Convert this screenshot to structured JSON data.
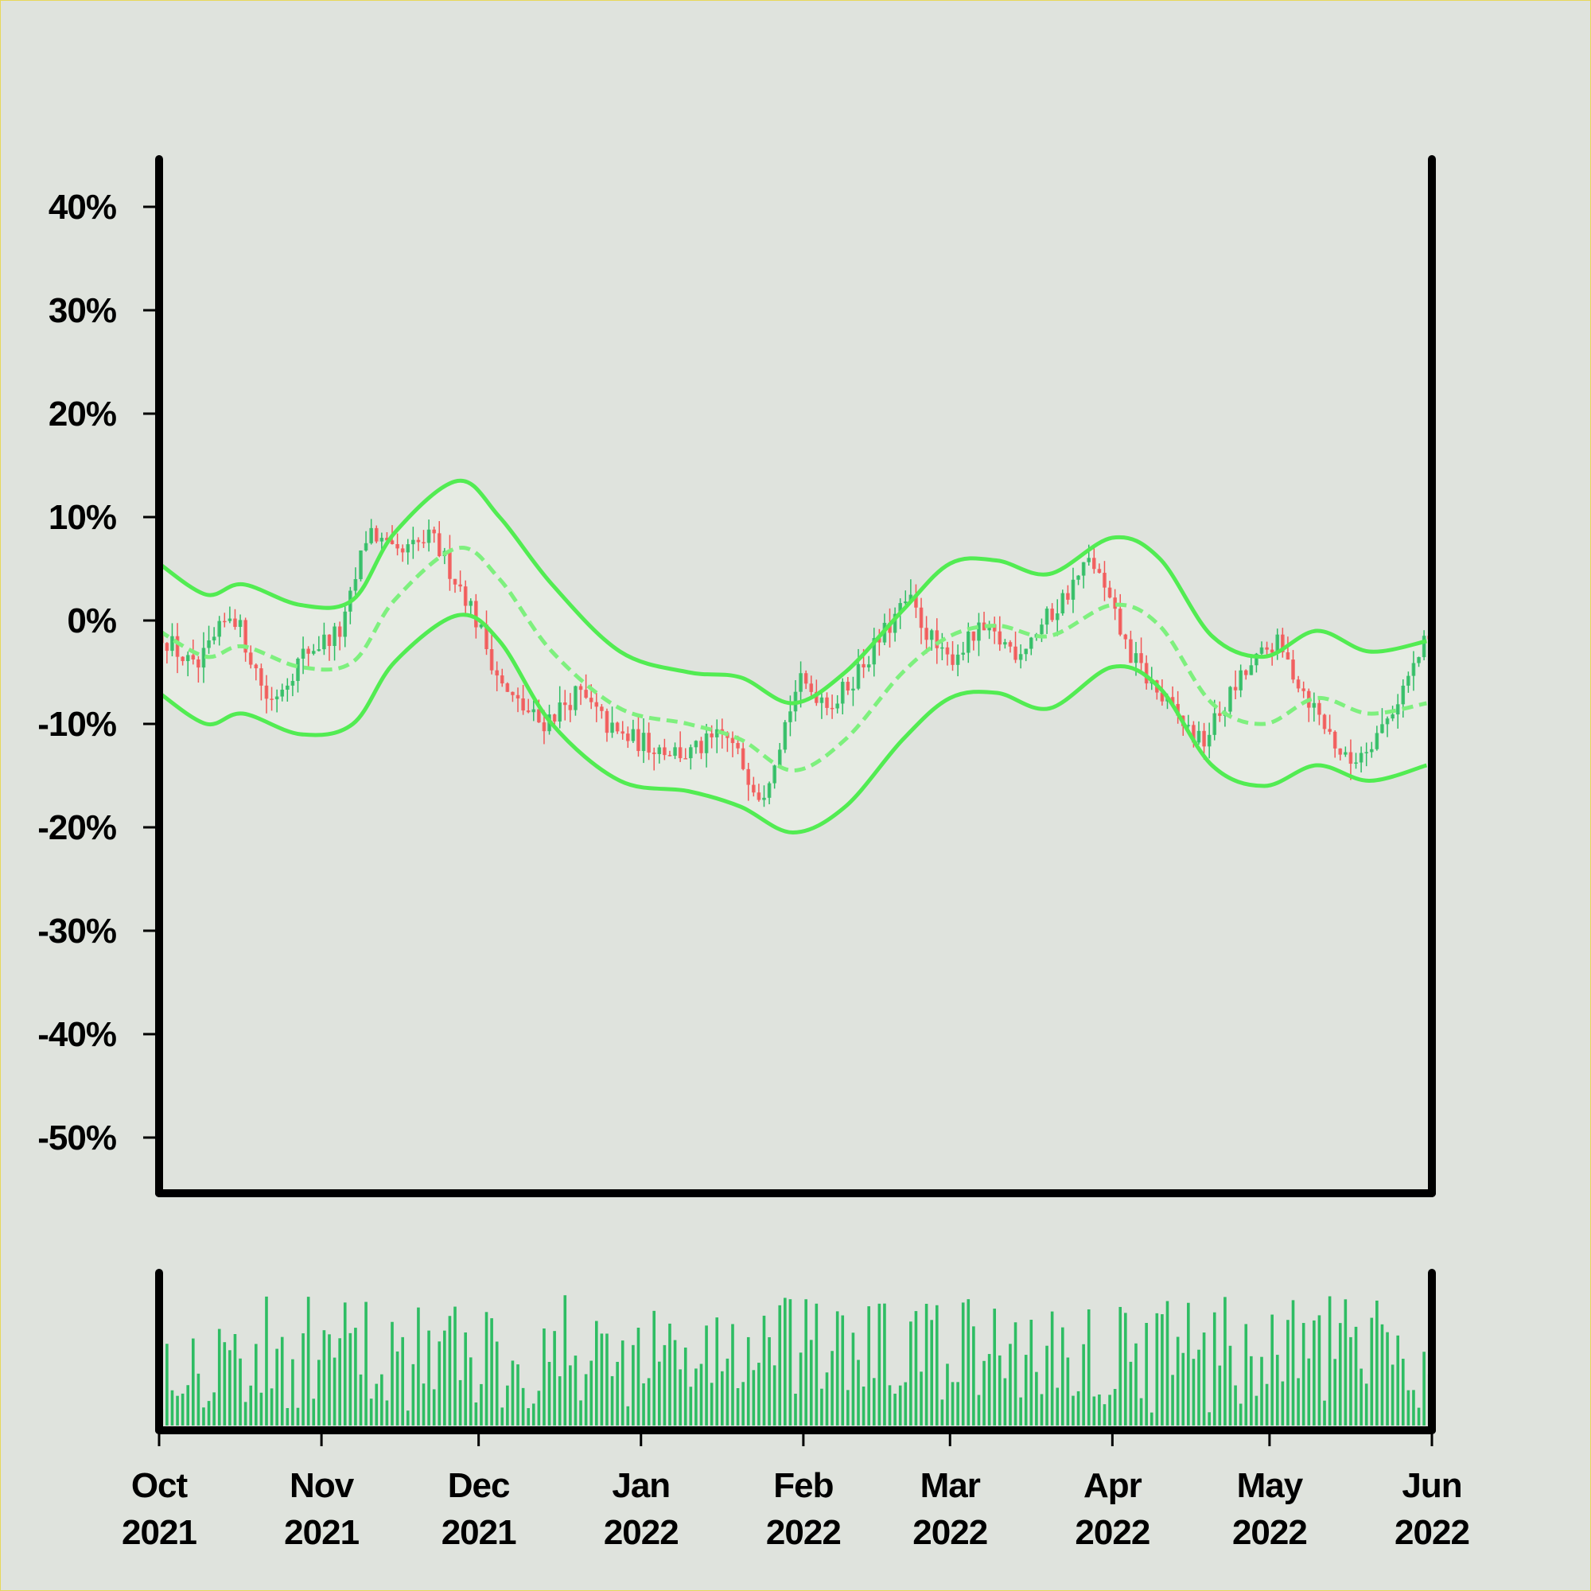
{
  "chart_data": {
    "type": "candlestick",
    "title": "",
    "x_axis": {
      "type": "date",
      "range": [
        "2021-10-01",
        "2022-06-01"
      ],
      "ticks": [
        {
          "month": "Oct",
          "year": "2021",
          "date": "2021-10-01"
        },
        {
          "month": "Nov",
          "year": "2021",
          "date": "2021-11-01"
        },
        {
          "month": "Dec",
          "year": "2021",
          "date": "2021-12-01"
        },
        {
          "month": "Jan",
          "year": "2022",
          "date": "2022-01-01"
        },
        {
          "month": "Feb",
          "year": "2022",
          "date": "2022-02-01"
        },
        {
          "month": "Mar",
          "year": "2022",
          "date": "2022-03-01"
        },
        {
          "month": "Apr",
          "year": "2022",
          "date": "2022-04-01"
        },
        {
          "month": "May",
          "year": "2022",
          "date": "2022-05-01"
        },
        {
          "month": "Jun",
          "year": "2022",
          "date": "2022-06-01"
        }
      ]
    },
    "y_axis": {
      "unit": "%",
      "range": [
        -55,
        45
      ],
      "ticks": [
        {
          "value": 40,
          "label": "40%"
        },
        {
          "value": 30,
          "label": "30%"
        },
        {
          "value": 20,
          "label": "20%"
        },
        {
          "value": 10,
          "label": "10%"
        },
        {
          "value": 0,
          "label": "0%"
        },
        {
          "value": -10,
          "label": "-10%"
        },
        {
          "value": -20,
          "label": "-20%"
        },
        {
          "value": -30,
          "label": "-30%"
        },
        {
          "value": -40,
          "label": "-40%"
        },
        {
          "value": -50,
          "label": "-50%"
        }
      ]
    },
    "close_path": [
      [
        "2021-10-01",
        -1
      ],
      [
        "2021-10-08",
        -5
      ],
      [
        "2021-10-15",
        1
      ],
      [
        "2021-10-22",
        -8
      ],
      [
        "2021-10-29",
        -3
      ],
      [
        "2021-11-05",
        -1
      ],
      [
        "2021-11-10",
        9
      ],
      [
        "2021-11-15",
        6
      ],
      [
        "2021-11-22",
        8
      ],
      [
        "2021-11-29",
        2
      ],
      [
        "2021-12-06",
        -7
      ],
      [
        "2021-12-13",
        -10
      ],
      [
        "2021-12-20",
        -7
      ],
      [
        "2021-12-27",
        -11
      ],
      [
        "2022-01-03",
        -12
      ],
      [
        "2022-01-10",
        -13
      ],
      [
        "2022-01-17",
        -11
      ],
      [
        "2022-01-24",
        -17
      ],
      [
        "2022-01-31",
        -6
      ],
      [
        "2022-02-07",
        -8
      ],
      [
        "2022-02-14",
        -3
      ],
      [
        "2022-02-21",
        2
      ],
      [
        "2022-02-28",
        -4
      ],
      [
        "2022-03-07",
        -1
      ],
      [
        "2022-03-14",
        -3
      ],
      [
        "2022-03-21",
        1
      ],
      [
        "2022-03-28",
        6
      ],
      [
        "2022-04-04",
        -3
      ],
      [
        "2022-04-11",
        -8
      ],
      [
        "2022-04-18",
        -12
      ],
      [
        "2022-04-25",
        -6
      ],
      [
        "2022-05-02",
        -2
      ],
      [
        "2022-05-09",
        -8
      ],
      [
        "2022-05-16",
        -14
      ],
      [
        "2022-05-23",
        -10
      ],
      [
        "2022-05-31",
        -2
      ]
    ],
    "bollinger_bands": {
      "upper": [
        [
          "2021-10-01",
          5.5
        ],
        [
          "2021-10-10",
          2.5
        ],
        [
          "2021-10-17",
          3.5
        ],
        [
          "2021-10-28",
          1.5
        ],
        [
          "2021-11-07",
          2
        ],
        [
          "2021-11-15",
          8.5
        ],
        [
          "2021-11-27",
          13.5
        ],
        [
          "2021-12-05",
          10
        ],
        [
          "2021-12-15",
          3.5
        ],
        [
          "2021-12-28",
          -3
        ],
        [
          "2022-01-10",
          -5
        ],
        [
          "2022-01-20",
          -5.5
        ],
        [
          "2022-01-30",
          -8
        ],
        [
          "2022-02-09",
          -5
        ],
        [
          "2022-02-20",
          1
        ],
        [
          "2022-03-01",
          5.5
        ],
        [
          "2022-03-10",
          5.8
        ],
        [
          "2022-03-20",
          4.5
        ],
        [
          "2022-04-01",
          8
        ],
        [
          "2022-04-10",
          6
        ],
        [
          "2022-04-20",
          -1.5
        ],
        [
          "2022-04-30",
          -3.5
        ],
        [
          "2022-05-10",
          -1
        ],
        [
          "2022-05-20",
          -3
        ],
        [
          "2022-05-31",
          -2
        ]
      ],
      "middle": [
        [
          "2021-10-01",
          -1
        ],
        [
          "2021-10-10",
          -3.5
        ],
        [
          "2021-10-17",
          -2.5
        ],
        [
          "2021-10-28",
          -4.5
        ],
        [
          "2021-11-07",
          -4
        ],
        [
          "2021-11-15",
          2
        ],
        [
          "2021-11-27",
          7
        ],
        [
          "2021-12-05",
          4
        ],
        [
          "2021-12-15",
          -3
        ],
        [
          "2021-12-28",
          -8.5
        ],
        [
          "2022-01-10",
          -10
        ],
        [
          "2022-01-20",
          -11.5
        ],
        [
          "2022-01-30",
          -14.5
        ],
        [
          "2022-02-09",
          -11.5
        ],
        [
          "2022-02-20",
          -5
        ],
        [
          "2022-03-01",
          -1.5
        ],
        [
          "2022-03-10",
          -0.5
        ],
        [
          "2022-03-20",
          -1.5
        ],
        [
          "2022-04-01",
          1.5
        ],
        [
          "2022-04-10",
          -0.5
        ],
        [
          "2022-04-20",
          -8
        ],
        [
          "2022-04-30",
          -10
        ],
        [
          "2022-05-10",
          -7.5
        ],
        [
          "2022-05-20",
          -9
        ],
        [
          "2022-05-31",
          -8
        ]
      ],
      "lower": [
        [
          "2021-10-01",
          -7
        ],
        [
          "2021-10-10",
          -10
        ],
        [
          "2021-10-17",
          -9
        ],
        [
          "2021-10-28",
          -11
        ],
        [
          "2021-11-07",
          -10
        ],
        [
          "2021-11-15",
          -4
        ],
        [
          "2021-11-27",
          0.5
        ],
        [
          "2021-12-05",
          -2
        ],
        [
          "2021-12-15",
          -10
        ],
        [
          "2021-12-28",
          -15.5
        ],
        [
          "2022-01-10",
          -16.5
        ],
        [
          "2022-01-20",
          -18
        ],
        [
          "2022-01-30",
          -20.5
        ],
        [
          "2022-02-09",
          -18
        ],
        [
          "2022-02-20",
          -11.5
        ],
        [
          "2022-03-01",
          -7.5
        ],
        [
          "2022-03-10",
          -7
        ],
        [
          "2022-03-20",
          -8.5
        ],
        [
          "2022-04-01",
          -4.5
        ],
        [
          "2022-04-10",
          -6.5
        ],
        [
          "2022-04-20",
          -14
        ],
        [
          "2022-04-30",
          -16
        ],
        [
          "2022-05-10",
          -14
        ],
        [
          "2022-05-20",
          -15.5
        ],
        [
          "2022-05-31",
          -14
        ]
      ]
    },
    "volume": {
      "visible": true,
      "axis_labels": false
    },
    "colors": {
      "up": "#2ebd63",
      "down": "#f25757",
      "band": "#52ec52",
      "band_fill": "#e6ebe3",
      "volume": "#2ebd63",
      "axis": "#000000",
      "background": "#dfe3dd"
    },
    "grid": false,
    "legend": "none"
  }
}
